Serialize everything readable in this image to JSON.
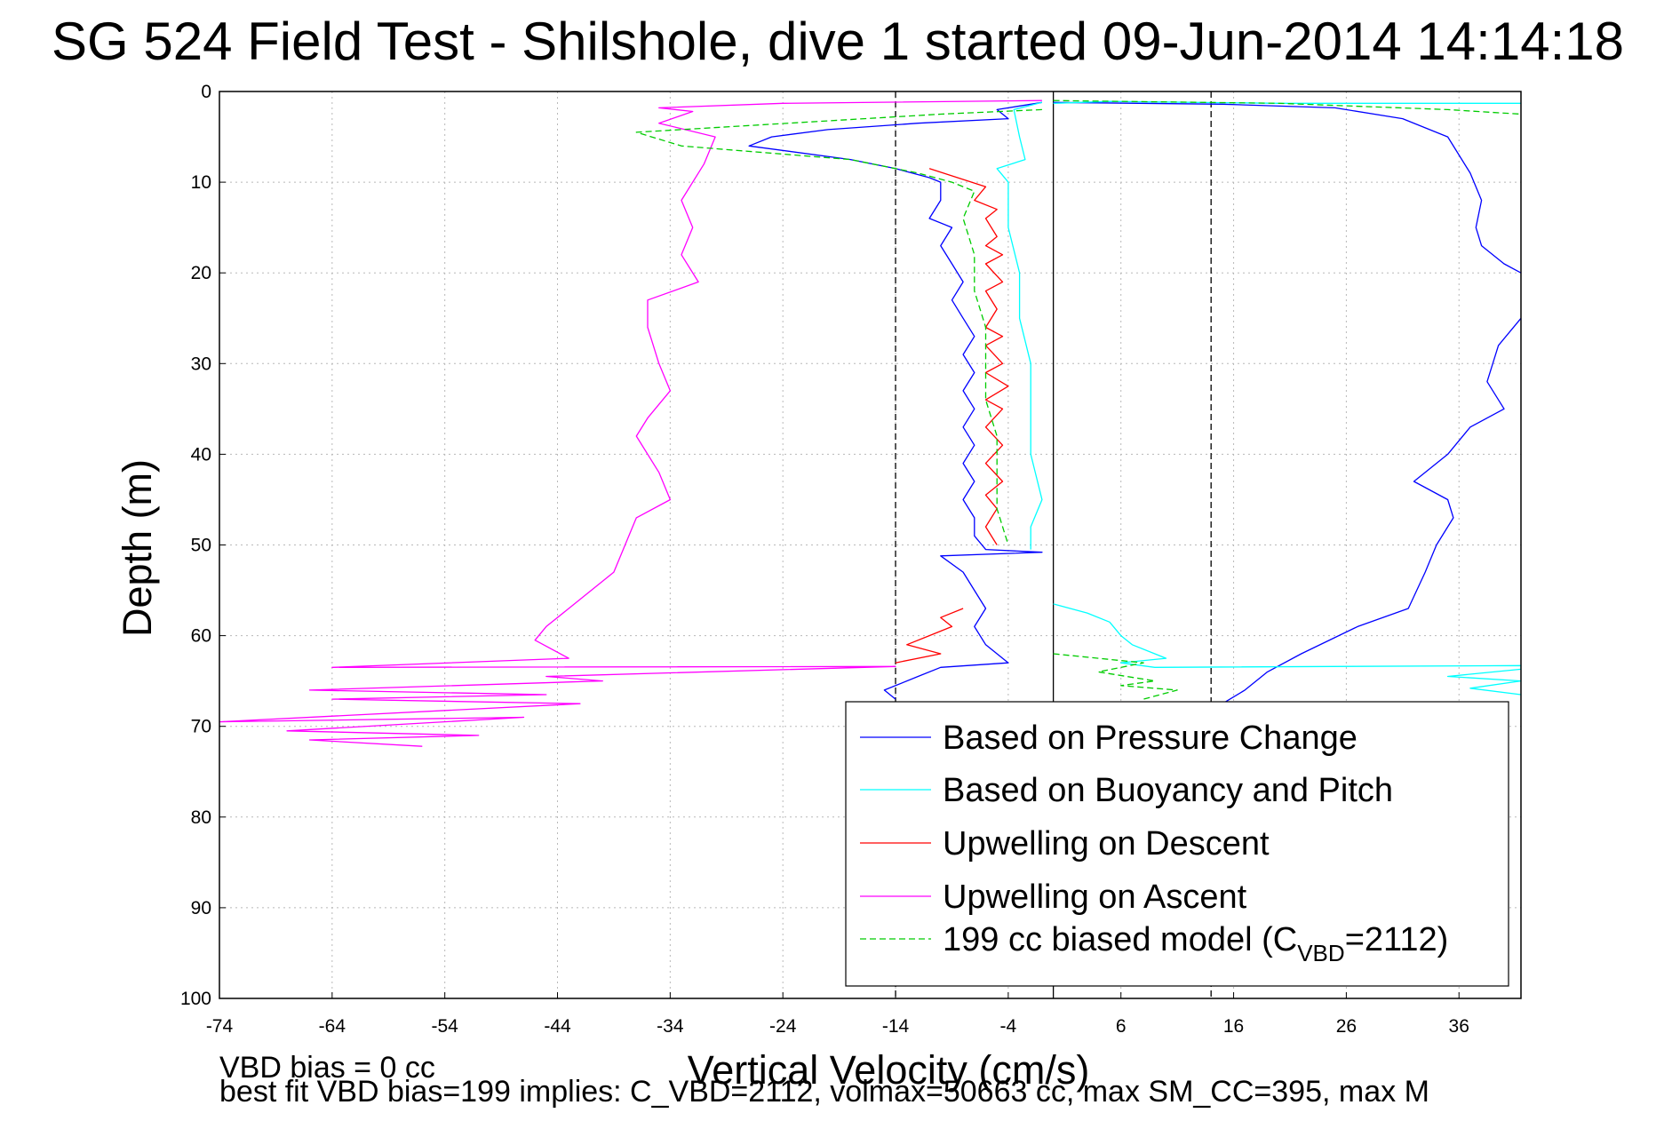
{
  "figure": {
    "title": "SG 524    Field Test - Shilshole, dive 1 started 09-Jun-2014 14:14:18",
    "footer_line1": "VBD bias = 0 cc",
    "footer_line2": "best fit VBD bias=199 implies: C_VBD=2112, volmax=50663 cc, max SM_CC=395, max M"
  },
  "chart_data": {
    "type": "line",
    "xlabel": "Vertical Velocity (cm/s)",
    "ylabel": "Depth (m)",
    "xlim": [
      -74,
      41.5
    ],
    "ylim": [
      0,
      100
    ],
    "y_reversed": true,
    "xticks": [
      -74,
      -64,
      -54,
      -44,
      -34,
      -24,
      -14,
      -4,
      6,
      16,
      26,
      36
    ],
    "yticks": [
      0,
      10,
      20,
      30,
      40,
      50,
      60,
      70,
      80,
      90,
      100
    ],
    "grid": true,
    "legend_position": "lower-right",
    "reference_lines": [
      {
        "x": -14,
        "style": "dashed",
        "color": "#000000"
      },
      {
        "x": 0,
        "style": "solid",
        "color": "#000000"
      },
      {
        "x": 14,
        "style": "dashed",
        "color": "#000000"
      }
    ],
    "series": [
      {
        "name": "Based on Pressure Change",
        "color": "#0000ff",
        "style": "solid",
        "segments": [
          [
            [
              -1,
              1.2
            ],
            [
              -5,
              2
            ],
            [
              -4,
              3
            ],
            [
              -12,
              3.5
            ],
            [
              -20,
              4.2
            ],
            [
              -25,
              5
            ],
            [
              -27,
              6
            ],
            [
              -18,
              7.5
            ],
            [
              -14,
              8.5
            ],
            [
              -11,
              9.5
            ],
            [
              -10,
              10
            ],
            [
              -10,
              12
            ],
            [
              -11,
              14
            ],
            [
              -9,
              15
            ],
            [
              -10,
              17
            ],
            [
              -9,
              19
            ],
            [
              -8,
              21
            ],
            [
              -9,
              23
            ],
            [
              -8,
              25
            ],
            [
              -7,
              27
            ],
            [
              -8,
              29
            ],
            [
              -7,
              31
            ],
            [
              -8,
              33
            ],
            [
              -7,
              35
            ],
            [
              -8,
              37
            ],
            [
              -7,
              39
            ],
            [
              -8,
              41
            ],
            [
              -7,
              43
            ],
            [
              -8,
              45
            ],
            [
              -7,
              47
            ],
            [
              -7,
              49
            ],
            [
              -6,
              50.5
            ],
            [
              -1,
              50.8
            ],
            [
              -10,
              51.2
            ],
            [
              -8,
              53
            ],
            [
              -7,
              55
            ],
            [
              -6,
              57
            ],
            [
              -7,
              59
            ],
            [
              -6,
              61
            ],
            [
              -4,
              63
            ],
            [
              -10,
              63.5
            ],
            [
              -12,
              64.5
            ],
            [
              -15,
              66
            ],
            [
              -14,
              67
            ]
          ],
          [
            [
              0,
              1.2
            ],
            [
              15,
              1.4
            ],
            [
              25,
              1.8
            ],
            [
              31,
              3
            ],
            [
              35,
              5
            ],
            [
              37,
              9
            ],
            [
              38,
              12
            ],
            [
              37.5,
              15
            ],
            [
              38,
              17
            ],
            [
              40,
              19
            ],
            [
              41.5,
              20
            ],
            null,
            [
              41.5,
              25
            ],
            [
              39.5,
              28
            ],
            [
              38.5,
              32
            ],
            [
              40,
              35
            ],
            [
              37,
              37
            ],
            [
              35,
              40
            ],
            [
              32,
              43
            ],
            [
              35,
              45
            ],
            [
              35.5,
              47
            ],
            [
              34,
              50
            ],
            [
              33,
              53
            ],
            [
              31.5,
              57
            ],
            [
              27,
              59
            ],
            [
              22,
              62
            ],
            [
              19,
              64
            ],
            [
              17,
              66
            ],
            [
              15,
              67.5
            ]
          ]
        ]
      },
      {
        "name": "Based on Buoyancy and Pitch",
        "color": "#00ffff",
        "style": "solid",
        "segments": [
          [
            [
              -1,
              1.2
            ],
            [
              -3.5,
              2
            ],
            [
              -3,
              5
            ],
            [
              -2.5,
              7.5
            ],
            [
              -5,
              8.5
            ],
            [
              -4,
              10
            ],
            [
              -4,
              15
            ],
            [
              -3,
              20
            ],
            [
              -3,
              25
            ],
            [
              -2,
              30
            ],
            [
              -2,
              35
            ],
            [
              -2,
              40
            ],
            [
              -1,
              45
            ],
            [
              -2,
              48
            ],
            [
              -2,
              50.5
            ]
          ],
          [
            [
              0,
              56.5
            ],
            [
              3,
              57.5
            ],
            [
              5,
              58.5
            ],
            [
              6,
              60
            ],
            [
              7,
              61
            ],
            [
              9,
              62
            ],
            [
              10,
              62.5
            ],
            [
              6,
              63
            ],
            [
              9,
              63.5
            ],
            [
              41.5,
              63.3
            ],
            [
              41.5,
              63.7
            ],
            [
              35,
              64.5
            ],
            [
              41.5,
              65
            ],
            [
              37,
              65.8
            ],
            [
              41.5,
              66.5
            ]
          ],
          [
            [
              0,
              1.3
            ],
            [
              5,
              1.1
            ],
            [
              20,
              1.3
            ],
            [
              41.5,
              1.3
            ]
          ]
        ]
      },
      {
        "name": "Upwelling on Descent",
        "color": "#ff0000",
        "style": "solid",
        "segments": [
          [
            [
              -11,
              8.5
            ],
            [
              -6,
              10.5
            ],
            [
              -7,
              12
            ],
            [
              -5,
              13
            ],
            [
              -6,
              14
            ],
            [
              -5,
              16
            ],
            [
              -6,
              17
            ],
            [
              -4.5,
              18
            ],
            [
              -6,
              19
            ],
            [
              -4.5,
              21
            ],
            [
              -6,
              22
            ],
            [
              -5,
              24
            ],
            [
              -6,
              26
            ],
            [
              -4.5,
              27
            ],
            [
              -6,
              28
            ],
            [
              -4.5,
              30
            ],
            [
              -6,
              31
            ],
            [
              -4,
              32.5
            ],
            [
              -6,
              34
            ],
            [
              -4.5,
              35
            ],
            [
              -6,
              37
            ],
            [
              -4.5,
              39
            ],
            [
              -6,
              41
            ],
            [
              -4.5,
              43
            ],
            [
              -6,
              44.5
            ],
            [
              -5,
              46
            ],
            [
              -6,
              48
            ],
            [
              -5,
              50
            ]
          ],
          [
            [
              -8,
              57
            ],
            [
              -10,
              58
            ],
            [
              -9,
              59
            ],
            [
              -11,
              60
            ],
            [
              -13,
              61
            ],
            [
              -10,
              62
            ],
            [
              -14,
              63
            ]
          ]
        ]
      },
      {
        "name": "Upwelling on Ascent",
        "color": "#ff00ff",
        "style": "solid",
        "segments": [
          [
            [
              -1,
              1
            ],
            [
              -24,
              1.3
            ],
            [
              -35,
              1.8
            ],
            [
              -32,
              2.2
            ],
            [
              -35,
              3.5
            ],
            [
              -30,
              5
            ],
            [
              -31,
              8
            ],
            [
              -33,
              12
            ],
            [
              -32,
              15
            ],
            [
              -33,
              18
            ],
            [
              -31.5,
              21
            ],
            [
              -36,
              23
            ],
            [
              -36,
              26
            ],
            [
              -35,
              30
            ],
            [
              -34,
              33
            ],
            [
              -36,
              36
            ],
            [
              -37,
              38
            ],
            [
              -35,
              42
            ],
            [
              -34,
              45
            ],
            [
              -37,
              47
            ],
            [
              -38,
              50
            ],
            [
              -39,
              53
            ],
            [
              -43,
              57
            ],
            [
              -45,
              59
            ],
            [
              -46,
              60.5
            ],
            [
              -43,
              62.5
            ],
            [
              -64,
              63.5
            ],
            [
              -14,
              63.4
            ],
            [
              -45,
              64.5
            ],
            [
              -40,
              65
            ],
            [
              -66,
              66
            ],
            [
              -45,
              66.5
            ],
            [
              -64,
              67
            ],
            [
              -42,
              67.5
            ],
            [
              -74,
              69.5
            ],
            [
              -47,
              69
            ],
            [
              -68,
              70.5
            ],
            [
              -51,
              71
            ],
            [
              -66,
              71.5
            ],
            [
              -56,
              72.2
            ]
          ]
        ]
      },
      {
        "name": "199 cc biased model (C_VBD=2112)",
        "label_parts": [
          "199 cc biased model (C",
          "VBD",
          "=2112)"
        ],
        "color": "#00cc00",
        "style": "dashed",
        "segments": [
          [
            [
              -1,
              2
            ],
            [
              -10,
              2.5
            ],
            [
              -37,
              4.5
            ],
            [
              -33,
              6
            ],
            [
              -18,
              7.5
            ],
            [
              -12,
              9
            ],
            [
              -9,
              10
            ],
            [
              -7,
              11
            ],
            [
              -8,
              14
            ],
            [
              -7,
              18
            ],
            [
              -7,
              22
            ],
            [
              -6,
              26
            ],
            [
              -6,
              30
            ],
            [
              -6,
              34
            ],
            [
              -5,
              38
            ],
            [
              -5,
              42
            ],
            [
              -5,
              46
            ],
            [
              -4,
              50
            ]
          ],
          [
            [
              0,
              62
            ],
            [
              8,
              63
            ],
            [
              4,
              64
            ],
            [
              9,
              65
            ],
            [
              6,
              65.5
            ],
            [
              11,
              66
            ],
            [
              8,
              67
            ]
          ],
          [
            [
              0,
              1
            ],
            [
              20,
              1.3
            ],
            [
              35,
              2
            ],
            [
              41.5,
              2.5
            ]
          ]
        ]
      }
    ]
  }
}
